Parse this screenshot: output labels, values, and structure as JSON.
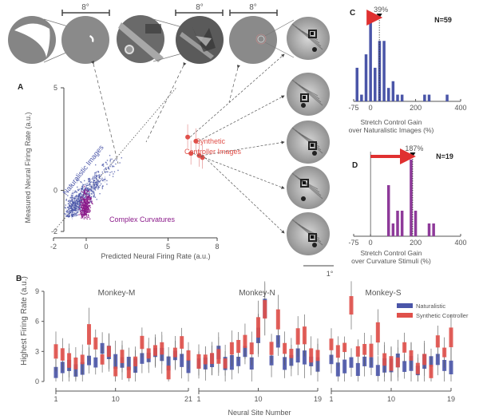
{
  "chart_data": [
    {
      "id": "A",
      "type": "scatter",
      "panel_label": "A",
      "xlabel": "Predicted Neural Firing Rate (a.u.)",
      "ylabel": "Measured Neural Firing Rate (a.u.)",
      "xlim": [
        -2,
        8
      ],
      "ylim": [
        -2,
        5
      ],
      "xticks": [
        "-2",
        "0",
        "5",
        "8"
      ],
      "yticks": [
        "-2",
        "0",
        "5"
      ],
      "xtick_values": [
        -2,
        0,
        5,
        8
      ],
      "ytick_values": [
        -2,
        0,
        5
      ],
      "identity_line": true,
      "series": [
        {
          "name": "Naturalistic Images",
          "color": "#4a55a8",
          "x_range": [
            -1.2,
            2.2
          ],
          "y_range": [
            -1.3,
            1.8
          ]
        },
        {
          "name": "Complex Curvatures",
          "color": "#8b1a8a",
          "x_range": [
            -0.4,
            0.4
          ],
          "y_range": [
            -1.4,
            0.2
          ]
        },
        {
          "name": "Synthetic Controller Images",
          "color": "#e0504a",
          "points": [
            {
              "x": 6.2,
              "y": 2.6
            },
            {
              "x": 6.7,
              "y": 2.4
            },
            {
              "x": 6.4,
              "y": 1.8
            },
            {
              "x": 6.9,
              "y": 1.7
            },
            {
              "x": 7.1,
              "y": 1.6
            }
          ]
        }
      ],
      "annotations": [
        "Naturalistic Images",
        "Complex Curvatures",
        "Synthetic",
        "Controller Images"
      ]
    },
    {
      "id": "C",
      "type": "bar",
      "panel_label": "C",
      "title": "N=59",
      "xlabel_lines": [
        "Stretch Control Gain",
        "over Naturalistic Images (%)"
      ],
      "xlim": [
        -75,
        400
      ],
      "xticks": [
        "-75",
        "0",
        "200",
        "400"
      ],
      "xtick_values": [
        -75,
        0,
        200,
        400
      ],
      "color": "#4a55a8",
      "bins": [
        -60,
        -40,
        -20,
        0,
        20,
        40,
        60,
        80,
        100,
        120,
        140,
        240,
        260,
        340
      ],
      "values": [
        5,
        1,
        7,
        12,
        5,
        9,
        9,
        2,
        3,
        1,
        1,
        1,
        1,
        1
      ],
      "marker_value": 39,
      "marker_label": "39%",
      "arrow_color": "#e03030"
    },
    {
      "id": "D",
      "type": "bar",
      "panel_label": "D",
      "title": "N=19",
      "xlabel_lines": [
        "Stretch Control Gain",
        "over Curvature Stimuli (%)"
      ],
      "xlim": [
        -75,
        400
      ],
      "xticks": [
        "-75",
        "0",
        "200",
        "400"
      ],
      "xtick_values": [
        -75,
        0,
        200,
        400
      ],
      "color": "#8e3a9a",
      "bins": [
        80,
        100,
        120,
        140,
        160,
        180,
        200,
        260,
        280
      ],
      "values": [
        4,
        1,
        2,
        2,
        0,
        6,
        2,
        1,
        1
      ],
      "marker_value": 187,
      "marker_label": "187%",
      "arrow_color": "#e03030"
    },
    {
      "id": "B",
      "type": "box",
      "panel_label": "B",
      "ylabel": "Highest Firing Rate (a.u.)",
      "xlabel": "Neural Site Number",
      "ylim": [
        0,
        9
      ],
      "yticks": [
        "0",
        "3",
        "6",
        "9"
      ],
      "ytick_values": [
        0,
        3,
        6,
        9
      ],
      "legend": [
        {
          "name": "Naturalistic",
          "color": "#4a55a8"
        },
        {
          "name": "Synthetic Controller",
          "color": "#e0504a"
        }
      ],
      "legend_position": "top-right",
      "groups": [
        {
          "name": "Monkey-M",
          "ticks": [
            "1",
            "10",
            "21"
          ],
          "tick_sites": [
            1,
            10,
            21
          ],
          "naturalistic": [
            0.9,
            1.4,
            1.6,
            1.1,
            1.3,
            2.1,
            1.9,
            3.3,
            2.9,
            2.0,
            1.9,
            1.8,
            1.6,
            2.3,
            2.4,
            2.9,
            2.7,
            1.8,
            2.6,
            2.1,
            1.5
          ],
          "synthetic": [
            3.0,
            2.7,
            2.1,
            1.8,
            2.2,
            4.7,
            3.8,
            2.2,
            3.0,
            1.0,
            2.5,
            0.9,
            2.0,
            3.9,
            2.8,
            3.1,
            3.3,
            0.9,
            2.9,
            3.9,
            2.6
          ]
        },
        {
          "name": "Monkey-N",
          "ticks": [
            "1",
            "10",
            "19"
          ],
          "tick_sites": [
            1,
            10,
            19
          ],
          "naturalistic": [
            1.8,
            1.8,
            2.1,
            2.9,
            1.8,
            1.9,
            2.0,
            3.0,
            1.8,
            4.6,
            7.3,
            2.1,
            4.0,
            1.8,
            2.1,
            2.6,
            2.4,
            2.0,
            1.7
          ],
          "synthetic": [
            2.0,
            2.2,
            2.3,
            2.5,
            1.8,
            3.3,
            3.5,
            4.0,
            3.3,
            5.4,
            7.2,
            3.3,
            6.2,
            3.3,
            2.8,
            4.5,
            4.6,
            2.6,
            2.6
          ]
        },
        {
          "name": "Monkey-S",
          "ticks": [
            "1",
            "10",
            "19"
          ],
          "tick_sites": [
            1,
            10,
            19
          ],
          "naturalistic": [
            2.2,
            1.2,
            1.5,
            1.9,
            1.2,
            2.0,
            1.9,
            1.1,
            1.6,
            1.6,
            2.1,
            1.5,
            1.8,
            1.1,
            2.0,
            2.0,
            2.2,
            1.6,
            1.4
          ],
          "synthetic": [
            3.7,
            3.0,
            3.4,
            7.6,
            3.0,
            3.2,
            3.1,
            4.9,
            2.2,
            1.8,
            1.9,
            3.4,
            2.6,
            1.3,
            2.2,
            1.0,
            4.0,
            2.9,
            4.4
          ]
        }
      ]
    }
  ],
  "images": {
    "scale_top": "8°",
    "scale_bottom": "1°",
    "top_row": [
      {
        "name": "curvature-stimulus"
      },
      {
        "name": "naturalistic-image"
      },
      {
        "name": "synthetic-controller-small"
      }
    ],
    "controller_images_count": 5
  }
}
